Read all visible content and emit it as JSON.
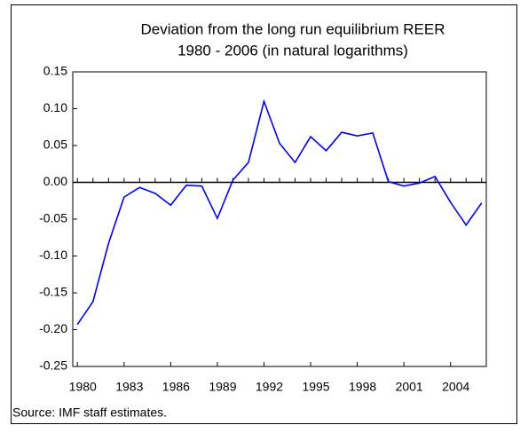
{
  "chart_data": {
    "type": "line",
    "title": "Deviation from the long run equilibrium REER",
    "subtitle": "1980 - 2006 (in natural logarithms)",
    "source": "Source: IMF staff estimates.",
    "x": [
      1980,
      1981,
      1982,
      1983,
      1984,
      1985,
      1986,
      1987,
      1988,
      1989,
      1990,
      1991,
      1992,
      1993,
      1994,
      1995,
      1996,
      1997,
      1998,
      1999,
      2000,
      2001,
      2002,
      2003,
      2004,
      2005,
      2006
    ],
    "series": [
      {
        "color": "#0000ff",
        "values": [
          -0.193,
          -0.162,
          -0.083,
          -0.02,
          -0.007,
          -0.015,
          -0.031,
          -0.004,
          -0.005,
          -0.049,
          0.003,
          0.027,
          0.11,
          0.053,
          0.027,
          0.062,
          0.043,
          0.068,
          0.063,
          0.067,
          0.001,
          -0.005,
          -0.001,
          0.008,
          -0.027,
          -0.058,
          -0.028
        ]
      }
    ],
    "xlim": [
      1979.7,
      2006.3
    ],
    "xticks": [
      1980,
      1983,
      1986,
      1989,
      1992,
      1995,
      1998,
      2001,
      2004
    ],
    "ylim": [
      -0.25,
      0.15
    ],
    "yticks": [
      {
        "value": 0.15,
        "label": "0.15"
      },
      {
        "value": 0.1,
        "label": "0.10"
      },
      {
        "value": 0.05,
        "label": "0.05"
      },
      {
        "value": 0,
        "label": "0.00"
      },
      {
        "value": -0.05,
        "label": "-0.05"
      },
      {
        "value": -0.1,
        "label": "-0.10"
      },
      {
        "value": -0.15,
        "label": "-0.15"
      },
      {
        "value": -0.2,
        "label": "-0.20"
      },
      {
        "value": -0.25,
        "label": "-0.25"
      }
    ],
    "grid": false
  }
}
